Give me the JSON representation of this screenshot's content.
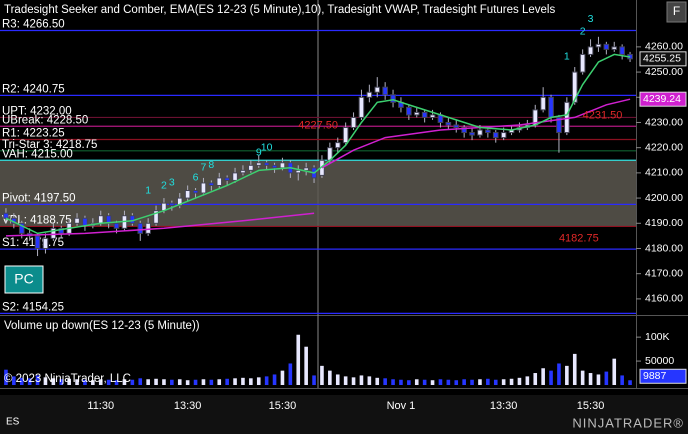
{
  "chart_data": {
    "type": "candlestick",
    "title": "Tradesight Seeker and Comber, EMA(ES 12-23 (5 Minute),10), Tradesight VWAP, Tradesight Futures Levels",
    "symbol": "ES",
    "logo": "NINJATRADER®",
    "copyright": "© 2023 NinjaTrader, LLC",
    "button_pc": "PC",
    "button_f": "F",
    "up_color": "#e8e8ff",
    "down_color": "#2636ff",
    "wick_color": "#b0b0c0",
    "categories": [
      null,
      null,
      null,
      null,
      null,
      null,
      null,
      null,
      null,
      null,
      null,
      null,
      "11:30",
      null,
      null,
      null,
      null,
      null,
      null,
      null,
      null,
      null,
      null,
      "13:30",
      null,
      null,
      null,
      null,
      null,
      null,
      null,
      null,
      null,
      null,
      null,
      "15:30",
      null,
      null,
      null,
      null,
      null,
      null,
      null,
      null,
      null,
      null,
      null,
      null,
      null,
      null,
      "Nov 1",
      null,
      null,
      null,
      null,
      null,
      null,
      null,
      null,
      null,
      null,
      null,
      null,
      "13:30",
      null,
      null,
      null,
      null,
      null,
      null,
      null,
      null,
      null,
      null,
      "15:30",
      null,
      null,
      null,
      null,
      null
    ],
    "ohlc": [
      [
        4194,
        4196,
        4190,
        4192
      ],
      [
        4192,
        4194,
        4188,
        4190
      ],
      [
        4190,
        4191,
        4184,
        4186
      ],
      [
        4186,
        4188,
        4183,
        4185
      ],
      [
        4185,
        4186,
        4177,
        4180
      ],
      [
        4180,
        4186,
        4178,
        4184
      ],
      [
        4184,
        4190,
        4183,
        4188
      ],
      [
        4188,
        4189,
        4184,
        4186
      ],
      [
        4186,
        4192,
        4185,
        4190
      ],
      [
        4190,
        4194,
        4189,
        4192
      ],
      [
        4192,
        4193,
        4187,
        4189
      ],
      [
        4189,
        4192,
        4188,
        4190
      ],
      [
        4190,
        4195,
        4189,
        4193
      ],
      [
        4193,
        4194,
        4188,
        4190
      ],
      [
        4190,
        4191,
        4186,
        4188
      ],
      [
        4188,
        4195,
        4187,
        4193
      ],
      [
        4193,
        4194,
        4189,
        4190
      ],
      [
        4190,
        4191,
        4183,
        4186
      ],
      [
        4186,
        4192,
        4185,
        4190
      ],
      [
        4190,
        4197,
        4189,
        4195
      ],
      [
        4195,
        4200,
        4194,
        4198
      ],
      [
        4198,
        4199,
        4195,
        4197
      ],
      [
        4197,
        4202,
        4196,
        4200
      ],
      [
        4200,
        4205,
        4199,
        4203
      ],
      [
        4203,
        4204,
        4200,
        4202
      ],
      [
        4202,
        4208,
        4201,
        4206
      ],
      [
        4206,
        4207,
        4203,
        4205
      ],
      [
        4205,
        4210,
        4204,
        4208
      ],
      [
        4208,
        4209,
        4205,
        4207
      ],
      [
        4207,
        4212,
        4206,
        4210
      ],
      [
        4210,
        4213,
        4209,
        4211
      ],
      [
        4211,
        4215,
        4210,
        4213
      ],
      [
        4213,
        4217,
        4212,
        4214
      ],
      [
        4214,
        4215,
        4211,
        4213
      ],
      [
        4213,
        4214,
        4210,
        4212
      ],
      [
        4212,
        4216,
        4211,
        4214
      ],
      [
        4214,
        4215,
        4208,
        4210
      ],
      [
        4210,
        4213,
        4207,
        4211
      ],
      [
        4211,
        4214,
        4209,
        4212
      ],
      [
        4212,
        4213,
        4206,
        4208
      ],
      [
        4209,
        4217,
        4208,
        4215
      ],
      [
        4215,
        4222,
        4214,
        4220
      ],
      [
        4220,
        4224,
        4218,
        4222
      ],
      [
        4222,
        4230,
        4221,
        4228
      ],
      [
        4228,
        4234,
        4227,
        4232
      ],
      [
        4232,
        4243,
        4231,
        4240
      ],
      [
        4240,
        4245,
        4238,
        4242
      ],
      [
        4242,
        4248,
        4240,
        4244
      ],
      [
        4244,
        4246,
        4239,
        4241
      ],
      [
        4241,
        4243,
        4236,
        4238
      ],
      [
        4238,
        4240,
        4234,
        4236
      ],
      [
        4236,
        4237,
        4231,
        4233
      ],
      [
        4233,
        4236,
        4232,
        4234
      ],
      [
        4234,
        4235,
        4230,
        4232
      ],
      [
        4232,
        4235,
        4231,
        4233
      ],
      [
        4233,
        4234,
        4228,
        4230
      ],
      [
        4230,
        4232,
        4227,
        4229
      ],
      [
        4229,
        4231,
        4226,
        4228
      ],
      [
        4228,
        4229,
        4224,
        4226
      ],
      [
        4226,
        4228,
        4223,
        4225
      ],
      [
        4225,
        4229,
        4224,
        4227
      ],
      [
        4227,
        4228,
        4224,
        4226
      ],
      [
        4226,
        4227,
        4222,
        4224
      ],
      [
        4224,
        4228,
        4223,
        4226
      ],
      [
        4226,
        4229,
        4225,
        4227
      ],
      [
        4227,
        4230,
        4226,
        4228
      ],
      [
        4228,
        4231,
        4227,
        4229
      ],
      [
        4229,
        4237,
        4228,
        4235
      ],
      [
        4235,
        4244,
        4234,
        4240
      ],
      [
        4240,
        4241,
        4230,
        4232
      ],
      [
        4232,
        4233,
        4218,
        4226
      ],
      [
        4226,
        4240,
        4225,
        4238
      ],
      [
        4238,
        4252,
        4237,
        4250
      ],
      [
        4250,
        4259,
        4249,
        4257
      ],
      [
        4257,
        4263,
        4256,
        4260
      ],
      [
        4260,
        4264,
        4258,
        4261
      ],
      [
        4261,
        4262,
        4257,
        4259
      ],
      [
        4259,
        4262,
        4258,
        4260
      ],
      [
        4260,
        4261,
        4255,
        4257
      ],
      [
        4257,
        4258,
        4254,
        4255.25
      ]
    ],
    "ylim": [
      4154,
      4278.6
    ],
    "yticks": [
      {
        "value": 4160,
        "label": "4160.00"
      },
      {
        "value": 4170,
        "label": "4170.00"
      },
      {
        "value": 4180,
        "label": "4180.00"
      },
      {
        "value": 4190,
        "label": "4190.00"
      },
      {
        "value": 4200,
        "label": "4200.00"
      },
      {
        "value": 4210,
        "label": "4210.00"
      },
      {
        "value": 4220,
        "label": "4220.00"
      },
      {
        "value": 4230,
        "label": "4230.00"
      },
      {
        "value": 4240,
        "label": "4240.00"
      },
      {
        "value": 4250,
        "label": "4250.00"
      },
      {
        "value": 4260,
        "label": "4260.00"
      }
    ],
    "ema": {
      "color": "#3cd070",
      "x": [
        0,
        4,
        8,
        12,
        16,
        20,
        24,
        28,
        32,
        36,
        39,
        41,
        43,
        45,
        47,
        49,
        52,
        56,
        60,
        64,
        67,
        69,
        71,
        73,
        75,
        77,
        79
      ],
      "values": [
        4192,
        4186,
        4188,
        4190,
        4191,
        4195,
        4200,
        4205,
        4211,
        4212,
        4210,
        4215,
        4221,
        4230,
        4238,
        4239,
        4236,
        4232,
        4228,
        4227,
        4229,
        4232,
        4233,
        4245,
        4254,
        4257,
        4256
      ]
    },
    "vwap": {
      "color": "#d020d0",
      "x": [
        0,
        10,
        20,
        30,
        39,
        39,
        40,
        44,
        48,
        55,
        65,
        72,
        76,
        79
      ],
      "values": [
        4185,
        4186,
        4188,
        4191,
        4194,
        null,
        4212,
        4219,
        4224,
        4227,
        4229,
        4232,
        4237,
        4239.24
      ]
    },
    "levels": [
      {
        "label": "R3: 4266.50",
        "value": 4266.5,
        "color": "#2a2aff"
      },
      {
        "label": "R2: 4240.75",
        "value": 4240.75,
        "color": "#2a2aff"
      },
      {
        "label": "UPT: 4232.00",
        "value": 4232,
        "color": "#6a1030"
      },
      {
        "label": "UBreak: 4228.50",
        "value": 4228.5,
        "color": "#b01880"
      },
      {
        "label": "R1: 4223.25",
        "value": 4223.25,
        "color": "#8a1020"
      },
      {
        "label": "Tri-Star 3: 4218.75",
        "value": 4218.75,
        "color": "#106030"
      },
      {
        "label": "VAH: 4215.00",
        "value": 4215,
        "color": "#30e0e0",
        "band_color": "#5c5850"
      },
      {
        "label": "Pivot: 4197.50",
        "value": 4197.5,
        "color": "#2a2aff"
      },
      {
        "label": "VPL: 4188.75",
        "value": 4188.75,
        "color": "#901020",
        "band_color": "#5c5850"
      },
      {
        "label": "S1: 4179.75",
        "value": 4179.75,
        "color": "#2a2aff"
      },
      {
        "label": "S2: 4154.25",
        "value": 4154.25,
        "color": "#2a2aff"
      }
    ],
    "price_labels": [
      {
        "label": "4227.50",
        "value": 4227.5,
        "index": 37
      },
      {
        "label": "4231.50",
        "value": 4231.5,
        "index": 73
      },
      {
        "label": "4182.75",
        "value": 4182.75,
        "index": 70
      }
    ],
    "price_label_color": "#e02828",
    "annotations": [
      {
        "text": "1",
        "index": 18,
        "price": 4203
      },
      {
        "text": "2",
        "index": 20,
        "price": 4205
      },
      {
        "text": "3",
        "index": 21,
        "price": 4206
      },
      {
        "text": "6",
        "index": 24,
        "price": 4208
      },
      {
        "text": "7",
        "index": 25,
        "price": 4212
      },
      {
        "text": "8",
        "index": 26,
        "price": 4213
      },
      {
        "text": "9",
        "index": 32,
        "price": 4218
      },
      {
        "text": "10",
        "index": 33,
        "price": 4220
      },
      {
        "text": "1",
        "index": 71,
        "price": 4256
      },
      {
        "text": "2",
        "index": 73,
        "price": 4266
      },
      {
        "text": "3",
        "index": 74,
        "price": 4271
      }
    ],
    "annotation_color": "#20e0e0",
    "volume": {
      "title": "Volume up down(ES 12-23 (5 Minute))",
      "values": [
        32000,
        18000,
        15000,
        14000,
        20000,
        16000,
        14000,
        12000,
        13000,
        12000,
        11000,
        10000,
        12000,
        11000,
        10000,
        12000,
        11000,
        14000,
        12000,
        13000,
        12000,
        11000,
        12000,
        10000,
        11000,
        12000,
        11000,
        12000,
        13000,
        14000,
        15000,
        14000,
        16000,
        18000,
        22000,
        30000,
        45000,
        105000,
        80000,
        20000,
        40000,
        30000,
        22000,
        18000,
        16000,
        20000,
        18000,
        15000,
        14000,
        12000,
        11000,
        10000,
        12000,
        11000,
        10000,
        12000,
        11000,
        10000,
        12000,
        11000,
        12000,
        13000,
        11000,
        12000,
        13000,
        15000,
        18000,
        25000,
        35000,
        30000,
        45000,
        40000,
        65000,
        30000,
        25000,
        22000,
        28000,
        55000,
        20000,
        9887
      ],
      "ylim": [
        0,
        140000
      ],
      "yticks": [
        {
          "value": 100000,
          "label": "100K"
        },
        50000
      ]
    }
  }
}
